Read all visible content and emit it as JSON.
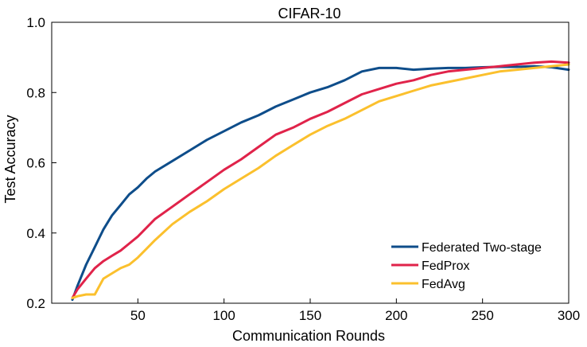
{
  "chart_data": {
    "type": "line",
    "title": "CIFAR-10",
    "xlabel": "Communication Rounds",
    "ylabel": "Test  Accuracy",
    "xlim": [
      0,
      300
    ],
    "ylim": [
      0.2,
      1.0
    ],
    "xticks": [
      50,
      100,
      150,
      200,
      250,
      300
    ],
    "yticks": [
      0.2,
      0.4,
      0.6,
      0.8,
      1.0
    ],
    "xtick_labels": [
      "50",
      "100",
      "150",
      "200",
      "250",
      "300"
    ],
    "ytick_labels": [
      "0.2",
      "0.4",
      "0.6",
      "0.8",
      "1.0"
    ],
    "grid": false,
    "legend_position": "bottom-right",
    "series": [
      {
        "name": "Federated Two-stage",
        "color": "#0e4d8a",
        "points": [
          [
            12,
            0.21
          ],
          [
            15,
            0.25
          ],
          [
            20,
            0.31
          ],
          [
            25,
            0.36
          ],
          [
            30,
            0.41
          ],
          [
            35,
            0.45
          ],
          [
            40,
            0.48
          ],
          [
            45,
            0.51
          ],
          [
            50,
            0.53
          ],
          [
            55,
            0.555
          ],
          [
            60,
            0.575
          ],
          [
            70,
            0.605
          ],
          [
            80,
            0.635
          ],
          [
            90,
            0.665
          ],
          [
            100,
            0.69
          ],
          [
            110,
            0.715
          ],
          [
            120,
            0.735
          ],
          [
            130,
            0.76
          ],
          [
            140,
            0.78
          ],
          [
            150,
            0.8
          ],
          [
            160,
            0.815
          ],
          [
            170,
            0.835
          ],
          [
            180,
            0.86
          ],
          [
            190,
            0.87
          ],
          [
            200,
            0.87
          ],
          [
            210,
            0.865
          ],
          [
            220,
            0.868
          ],
          [
            230,
            0.87
          ],
          [
            240,
            0.87
          ],
          [
            250,
            0.872
          ],
          [
            260,
            0.873
          ],
          [
            270,
            0.873
          ],
          [
            280,
            0.875
          ],
          [
            290,
            0.872
          ],
          [
            300,
            0.865
          ]
        ]
      },
      {
        "name": "FedProx",
        "color": "#e0234a",
        "points": [
          [
            12,
            0.215
          ],
          [
            15,
            0.24
          ],
          [
            20,
            0.27
          ],
          [
            25,
            0.3
          ],
          [
            30,
            0.32
          ],
          [
            35,
            0.335
          ],
          [
            40,
            0.35
          ],
          [
            45,
            0.37
          ],
          [
            50,
            0.39
          ],
          [
            55,
            0.415
          ],
          [
            60,
            0.44
          ],
          [
            70,
            0.475
          ],
          [
            80,
            0.51
          ],
          [
            90,
            0.545
          ],
          [
            100,
            0.58
          ],
          [
            110,
            0.61
          ],
          [
            120,
            0.645
          ],
          [
            130,
            0.68
          ],
          [
            140,
            0.7
          ],
          [
            150,
            0.725
          ],
          [
            160,
            0.745
          ],
          [
            170,
            0.77
          ],
          [
            180,
            0.795
          ],
          [
            190,
            0.81
          ],
          [
            200,
            0.825
          ],
          [
            210,
            0.835
          ],
          [
            220,
            0.85
          ],
          [
            230,
            0.86
          ],
          [
            240,
            0.865
          ],
          [
            250,
            0.87
          ],
          [
            260,
            0.875
          ],
          [
            270,
            0.88
          ],
          [
            280,
            0.885
          ],
          [
            290,
            0.888
          ],
          [
            300,
            0.885
          ]
        ]
      },
      {
        "name": "FedAvg",
        "color": "#fbc02d",
        "points": [
          [
            12,
            0.215
          ],
          [
            15,
            0.22
          ],
          [
            20,
            0.225
          ],
          [
            25,
            0.225
          ],
          [
            30,
            0.27
          ],
          [
            35,
            0.285
          ],
          [
            40,
            0.3
          ],
          [
            45,
            0.31
          ],
          [
            50,
            0.33
          ],
          [
            55,
            0.355
          ],
          [
            60,
            0.38
          ],
          [
            70,
            0.425
          ],
          [
            80,
            0.46
          ],
          [
            90,
            0.49
          ],
          [
            100,
            0.525
          ],
          [
            110,
            0.555
          ],
          [
            120,
            0.585
          ],
          [
            130,
            0.62
          ],
          [
            140,
            0.65
          ],
          [
            150,
            0.68
          ],
          [
            160,
            0.705
          ],
          [
            170,
            0.725
          ],
          [
            180,
            0.75
          ],
          [
            190,
            0.775
          ],
          [
            200,
            0.79
          ],
          [
            210,
            0.805
          ],
          [
            220,
            0.82
          ],
          [
            230,
            0.83
          ],
          [
            240,
            0.84
          ],
          [
            250,
            0.85
          ],
          [
            260,
            0.86
          ],
          [
            270,
            0.865
          ],
          [
            280,
            0.87
          ],
          [
            290,
            0.875
          ],
          [
            300,
            0.88
          ]
        ]
      }
    ]
  }
}
